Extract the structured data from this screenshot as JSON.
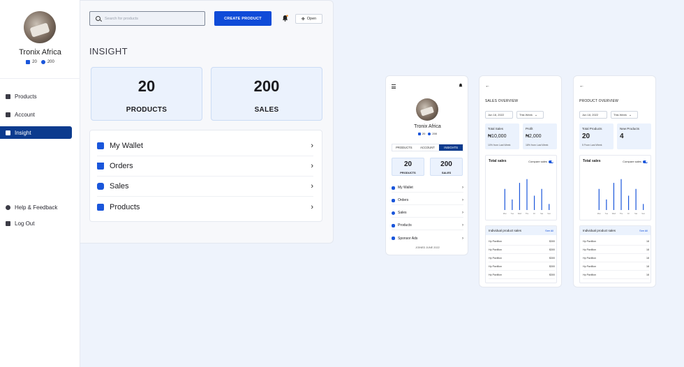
{
  "desktop": {
    "profile": {
      "name": "Tronix Africa",
      "products_count": "20",
      "sales_count": "200"
    },
    "nav": [
      {
        "label": "Products",
        "icon": "bag-icon"
      },
      {
        "label": "Account",
        "icon": "id-card-icon"
      },
      {
        "label": "Insight",
        "icon": "trend-icon",
        "active": true
      }
    ],
    "nav_bottom": [
      {
        "label": "Help & Feedback",
        "icon": "help-icon"
      },
      {
        "label": "Log Out",
        "icon": "logout-icon"
      }
    ],
    "search_placeholder": "Search for products",
    "create_button": "CREATE PRODUCT",
    "open_button": "Open",
    "section_title": "INSIGHT",
    "stats": [
      {
        "value": "20",
        "label": "PRODUCTS"
      },
      {
        "value": "200",
        "label": "SALES"
      }
    ],
    "menu": [
      {
        "label": "My Wallet",
        "icon": "wallet-icon"
      },
      {
        "label": "Orders",
        "icon": "cart-icon"
      },
      {
        "label": "Sales",
        "icon": "sales-badge-icon"
      },
      {
        "label": "Products",
        "icon": "bag-icon"
      }
    ]
  },
  "mobile_insight": {
    "name": "Tronix Africa",
    "products_count": "20",
    "sales_count": "200",
    "tabs": [
      "PRODUCTS",
      "ACCOUNT",
      "INSIGHTS"
    ],
    "active_tab": "INSIGHTS",
    "stats": [
      {
        "value": "20",
        "label": "PRODUCTS"
      },
      {
        "value": "200",
        "label": "SALES"
      }
    ],
    "menu": [
      "My Wallet",
      "Orders",
      "Sales",
      "Products",
      "Sponsor Ads"
    ],
    "joined": "JOINED JUNE 2022"
  },
  "sales_overview": {
    "title": "SALES OVERVIEW",
    "date": "Jun 18, 2022",
    "period": "This Week",
    "tiles": [
      {
        "label": "Total Sales",
        "value": "₦10,000",
        "note": "10% from Last Week"
      },
      {
        "label": "Profit",
        "value": "₦2,000",
        "note": "18% from Last Week"
      }
    ],
    "chart_title": "Total sales",
    "compare_label": "Compare sales",
    "individual_title": "Individual product sales",
    "see_all": "See All",
    "rows": [
      {
        "name": "Hp Pavillion",
        "value": "$300"
      },
      {
        "name": "Hp Pavillion",
        "value": "$300"
      },
      {
        "name": "Hp Pavillion",
        "value": "$300"
      },
      {
        "name": "Hp Pavillion",
        "value": "$300"
      },
      {
        "name": "Hp Pavillion",
        "value": "$300"
      }
    ]
  },
  "product_overview": {
    "title": "PRODUCT OVERVIEW",
    "date": "Jun 18, 2022",
    "period": "This Week",
    "tiles": [
      {
        "label": "Total Products",
        "value": "20",
        "note": "5 From Last Week"
      },
      {
        "label": "New Products",
        "value": "4",
        "note": ""
      }
    ],
    "chart_title": "Total sales",
    "compare_label": "Compare sales",
    "individual_title": "Individual product sales",
    "see_all": "See All",
    "rows": [
      {
        "name": "Hp Pavillion",
        "value": "18"
      },
      {
        "name": "Hp Pavillion",
        "value": "18"
      },
      {
        "name": "Hp Pavillion",
        "value": "18"
      },
      {
        "name": "Hp Pavillion",
        "value": "18"
      },
      {
        "name": "Hp Pavillion",
        "value": "18"
      }
    ]
  },
  "chart_data": [
    {
      "type": "bar",
      "categories": [
        "Mon",
        "Tue",
        "Wed",
        "Thu",
        "Fri",
        "Sat",
        "Sun"
      ],
      "values": [
        28,
        14,
        36,
        41,
        19,
        28,
        8
      ],
      "ylim": [
        0,
        50
      ]
    },
    {
      "type": "bar",
      "categories": [
        "Mon",
        "Tue",
        "Wed",
        "Thu",
        "Fri",
        "Sat",
        "Sun"
      ],
      "values": [
        28,
        14,
        36,
        41,
        19,
        28,
        8
      ],
      "ylim": [
        0,
        50
      ]
    }
  ],
  "colors": {
    "primary": "#0f4bd8",
    "sidebar_active": "#0c3b8e",
    "tile_bg": "#ebf2fd",
    "page_bg": "#eef3fc"
  }
}
